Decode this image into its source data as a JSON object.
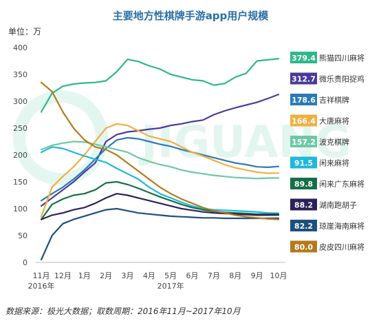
{
  "chart_data": {
    "type": "line",
    "title": "主要地方性棋牌手游app用户规模",
    "unit_label": "单位：万",
    "source": "数据来源：极光大数据；取数周期：2016年11月~2017年10月",
    "watermark": "JIGUANG",
    "ylim": [
      0,
      400
    ],
    "yticks": [
      0,
      50,
      100,
      150,
      200,
      250,
      300,
      350,
      400
    ],
    "x_ticks": [
      "11月",
      "12月",
      "1月",
      "2月",
      "3月",
      "4月",
      "5月",
      "6月",
      "7月",
      "8月",
      "9月",
      "10月"
    ],
    "year_labels": [
      {
        "text": "2016年",
        "tick": 0
      },
      {
        "text": "2017年",
        "tick": 6
      }
    ],
    "x": [
      0,
      0.5,
      1,
      1.5,
      2,
      2.5,
      3,
      3.5,
      4,
      4.5,
      5,
      5.5,
      6,
      6.5,
      7,
      7.5,
      8,
      8.5,
      9,
      9.5,
      10,
      10.5,
      11
    ],
    "series": [
      {
        "name": "熊猫四川麻将",
        "value_label": "379.4",
        "color": "#2eb88a",
        "values": [
          280,
          315,
          328,
          332,
          334,
          335,
          338,
          355,
          378,
          374,
          366,
          360,
          350,
          345,
          340,
          338,
          330,
          333,
          345,
          352,
          375,
          377,
          379.4
        ]
      },
      {
        "name": "微乐贵阳捉鸡",
        "value_label": "312.7",
        "color": "#4b3a9a",
        "values": [
          105,
          120,
          135,
          150,
          168,
          185,
          225,
          238,
          243,
          245,
          248,
          250,
          255,
          258,
          262,
          265,
          275,
          282,
          288,
          293,
          298,
          305,
          312.7
        ]
      },
      {
        "name": "吉祥棋牌",
        "value_label": "178.6",
        "color": "#2a7ab8",
        "values": [
          115,
          128,
          140,
          155,
          172,
          192,
          212,
          228,
          232,
          230,
          225,
          220,
          216,
          210,
          205,
          200,
          195,
          190,
          185,
          182,
          178,
          177,
          178.6
        ]
      },
      {
        "name": "大唐麻将",
        "value_label": "166.4",
        "color": "#f0b040",
        "values": [
          85,
          140,
          160,
          178,
          200,
          225,
          250,
          258,
          255,
          245,
          235,
          230,
          225,
          215,
          205,
          198,
          190,
          182,
          176,
          172,
          168,
          166,
          166.4
        ]
      },
      {
        "name": "波克棋牌",
        "value_label": "157.2",
        "color": "#6fc7a5",
        "values": [
          210,
          218,
          222,
          225,
          224,
          220,
          215,
          210,
          205,
          195,
          188,
          182,
          178,
          172,
          168,
          165,
          162,
          160,
          158,
          157,
          156,
          157,
          157.2
        ]
      },
      {
        "name": "闲来麻将",
        "value_label": "91.5",
        "color": "#1fb8dc",
        "values": [
          205,
          215,
          212,
          205,
          198,
          192,
          186,
          175,
          165,
          155,
          140,
          128,
          120,
          112,
          105,
          100,
          98,
          97,
          96,
          95,
          94,
          92,
          91.5
        ]
      },
      {
        "name": "闲来广东麻将",
        "value_label": "89.8",
        "color": "#166f46",
        "values": [
          80,
          108,
          118,
          125,
          128,
          135,
          148,
          150,
          145,
          138,
          130,
          122,
          115,
          108,
          102,
          98,
          95,
          93,
          92,
          91,
          90,
          90,
          89.8
        ]
      },
      {
        "name": "湖南跑胡子",
        "value_label": "88.2",
        "color": "#2c2158",
        "values": [
          80,
          88,
          92,
          98,
          102,
          110,
          120,
          128,
          125,
          120,
          115,
          110,
          105,
          100,
          97,
          94,
          92,
          91,
          90,
          89,
          88,
          88,
          88.2
        ]
      },
      {
        "name": "琼崖海南麻将",
        "value_label": "82.2",
        "color": "#1d4f7e",
        "values": [
          5,
          50,
          72,
          80,
          86,
          92,
          98,
          100,
          96,
          92,
          90,
          88,
          86,
          85,
          84,
          83,
          83,
          82,
          82,
          82,
          82,
          82,
          82.2
        ]
      },
      {
        "name": "皮皮四川麻将",
        "value_label": "80.0",
        "color": "#b5791c",
        "values": [
          335,
          318,
          280,
          250,
          228,
          215,
          210,
          200,
          185,
          170,
          155,
          140,
          128,
          118,
          110,
          102,
          96,
          92,
          88,
          85,
          83,
          81,
          80.0
        ]
      }
    ]
  }
}
